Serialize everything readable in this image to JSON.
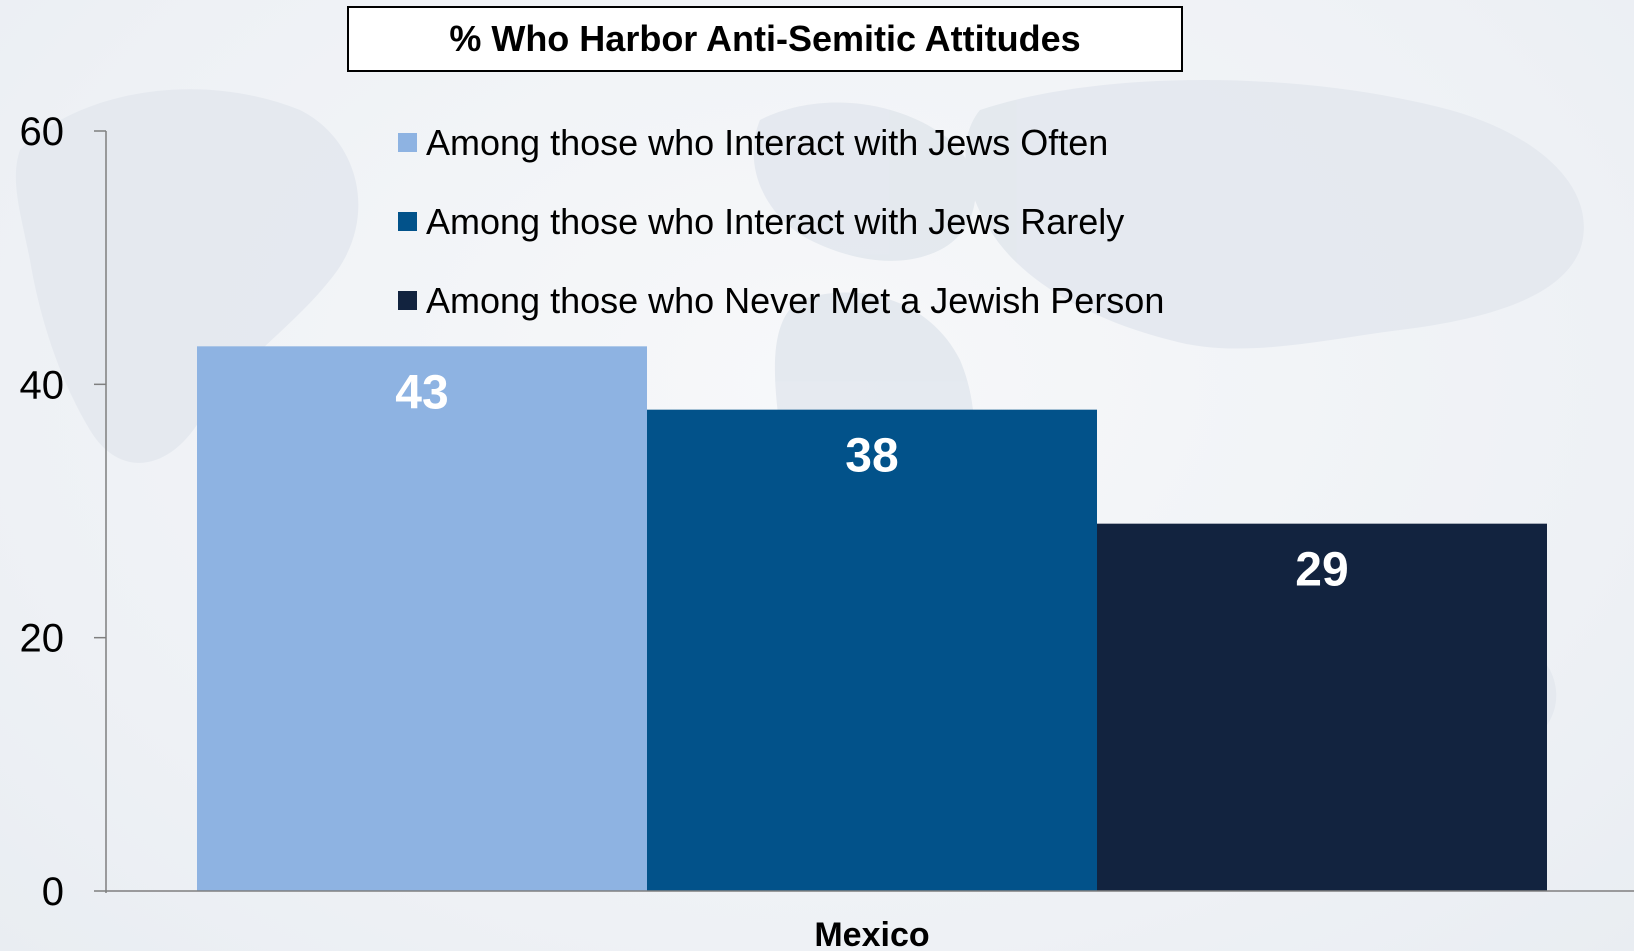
{
  "colors": {
    "often": "#8eb3e2",
    "rarely": "#02528a",
    "never": "#12233f",
    "axis": "#7f7f7f"
  },
  "chart_data": {
    "type": "bar",
    "title": "% Who Harbor Anti-Semitic Attitudes",
    "categories": [
      "Mexico"
    ],
    "series": [
      {
        "name": "Among those who Interact with Jews Often",
        "values": [
          43
        ],
        "color": "#8eb3e2"
      },
      {
        "name": "Among those who Interact with Jews Rarely",
        "values": [
          38
        ],
        "color": "#02528a"
      },
      {
        "name": "Among those who Never Met a Jewish Person",
        "values": [
          29
        ],
        "color": "#12233f"
      }
    ],
    "xlabel": "",
    "ylabel": "",
    "ylim": [
      0,
      60
    ],
    "yticks": [
      "0",
      "20",
      "40",
      "60"
    ],
    "ytick_values": [
      0,
      20,
      40,
      60
    ],
    "data_labels": [
      "43",
      "38",
      "29"
    ],
    "grid": false,
    "legend_position": "top-center"
  }
}
